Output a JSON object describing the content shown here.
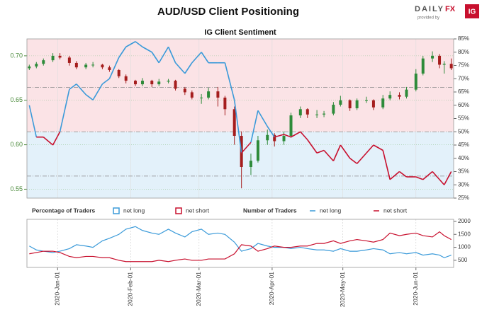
{
  "header": {
    "title": "AUD/USD Client Positioning",
    "logo_daily": "DAILY",
    "logo_fx": "FX",
    "provided_by": "provided by",
    "brand": "IG"
  },
  "chart_data": [
    {
      "type": "candlestick",
      "title": "IG Client Sentiment",
      "x": [
        "2019-12-20",
        "2019-12-23",
        "2019-12-26",
        "2019-12-30",
        "2020-01-02",
        "2020-01-06",
        "2020-01-09",
        "2020-01-13",
        "2020-01-16",
        "2020-01-20",
        "2020-01-23",
        "2020-01-27",
        "2020-01-30",
        "2020-02-03",
        "2020-02-06",
        "2020-02-10",
        "2020-02-13",
        "2020-02-17",
        "2020-02-20",
        "2020-02-24",
        "2020-02-27",
        "2020-03-02",
        "2020-03-05",
        "2020-03-09",
        "2020-03-12",
        "2020-03-16",
        "2020-03-19",
        "2020-03-23",
        "2020-03-26",
        "2020-03-30",
        "2020-04-02",
        "2020-04-06",
        "2020-04-09",
        "2020-04-13",
        "2020-04-16",
        "2020-04-20",
        "2020-04-23",
        "2020-04-27",
        "2020-04-30",
        "2020-05-04",
        "2020-05-07",
        "2020-05-11",
        "2020-05-14",
        "2020-05-18",
        "2020-05-21",
        "2020-05-25",
        "2020-05-28",
        "2020-06-01",
        "2020-06-04",
        "2020-06-08",
        "2020-06-11",
        "2020-06-13",
        "2020-06-16"
      ],
      "open": [
        0.686,
        0.688,
        0.691,
        0.695,
        0.7,
        0.698,
        0.692,
        0.687,
        0.69,
        0.69,
        0.687,
        0.684,
        0.677,
        0.672,
        0.668,
        0.672,
        0.668,
        0.671,
        0.672,
        0.663,
        0.659,
        0.653,
        0.653,
        0.66,
        0.653,
        0.64,
        0.61,
        0.575,
        0.582,
        0.605,
        0.611,
        0.604,
        0.61,
        0.633,
        0.64,
        0.634,
        0.634,
        0.635,
        0.645,
        0.65,
        0.641,
        0.65,
        0.65,
        0.642,
        0.652,
        0.656,
        0.654,
        0.662,
        0.68,
        0.697,
        0.7,
        0.69,
        0.691
      ],
      "high": [
        0.69,
        0.693,
        0.697,
        0.703,
        0.703,
        0.7,
        0.694,
        0.692,
        0.693,
        0.691,
        0.689,
        0.685,
        0.679,
        0.673,
        0.675,
        0.673,
        0.674,
        0.674,
        0.673,
        0.665,
        0.661,
        0.657,
        0.664,
        0.665,
        0.655,
        0.643,
        0.615,
        0.59,
        0.61,
        0.617,
        0.613,
        0.615,
        0.636,
        0.643,
        0.641,
        0.639,
        0.638,
        0.648,
        0.655,
        0.651,
        0.652,
        0.654,
        0.651,
        0.656,
        0.66,
        0.659,
        0.665,
        0.685,
        0.7,
        0.705,
        0.702,
        0.694,
        0.697
      ],
      "low": [
        0.684,
        0.686,
        0.689,
        0.693,
        0.696,
        0.689,
        0.685,
        0.685,
        0.687,
        0.685,
        0.682,
        0.675,
        0.669,
        0.666,
        0.666,
        0.665,
        0.666,
        0.669,
        0.661,
        0.656,
        0.651,
        0.646,
        0.651,
        0.643,
        0.633,
        0.6,
        0.551,
        0.566,
        0.58,
        0.6,
        0.598,
        0.6,
        0.608,
        0.63,
        0.63,
        0.63,
        0.631,
        0.633,
        0.643,
        0.638,
        0.639,
        0.647,
        0.639,
        0.64,
        0.65,
        0.651,
        0.652,
        0.66,
        0.678,
        0.693,
        0.686,
        0.68,
        0.684
      ],
      "close": [
        0.688,
        0.691,
        0.695,
        0.7,
        0.698,
        0.692,
        0.687,
        0.69,
        0.69,
        0.687,
        0.684,
        0.677,
        0.672,
        0.668,
        0.672,
        0.668,
        0.671,
        0.672,
        0.663,
        0.659,
        0.653,
        0.653,
        0.66,
        0.653,
        0.64,
        0.61,
        0.575,
        0.582,
        0.605,
        0.611,
        0.604,
        0.61,
        0.633,
        0.64,
        0.634,
        0.634,
        0.635,
        0.645,
        0.65,
        0.641,
        0.65,
        0.65,
        0.642,
        0.652,
        0.656,
        0.654,
        0.662,
        0.68,
        0.697,
        0.7,
        0.69,
        0.691,
        0.686
      ],
      "up_color": "#2e8b3a",
      "down_color": "#a51d1d",
      "sentiment": {
        "values": [
          60,
          48,
          48,
          45,
          50,
          66,
          68,
          64,
          62,
          68,
          70,
          78,
          82,
          84,
          82,
          80,
          76,
          82,
          76,
          72,
          76,
          80,
          76,
          76,
          76,
          62,
          42,
          46,
          58,
          52,
          48,
          49,
          48,
          50,
          47,
          42,
          43,
          39,
          45,
          40,
          38,
          42,
          45,
          43,
          32,
          35,
          33,
          33,
          32,
          35,
          32,
          30,
          35
        ],
        "threshold": 50
      },
      "legend": [
        {
          "name": "net long",
          "color": "#3a9ad9"
        },
        {
          "name": "net short",
          "color": "#c8102e"
        }
      ],
      "reference_lines": [
        33.3,
        50,
        66.7
      ],
      "xlim": [
        "2019-12-19",
        "2020-06-17"
      ],
      "ylim": [
        0.54,
        0.719
      ],
      "yticks": [
        0.55,
        {
          "value": 0.6,
          "label": "0.60"
        },
        0.65,
        {
          "value": 0.7,
          "label": "0.70"
        }
      ],
      "y2lim": [
        25,
        85
      ],
      "y2ticks": [
        {
          "value": 25,
          "label": "25%"
        },
        {
          "value": 30,
          "label": "30%"
        },
        {
          "value": 35,
          "label": "35%"
        },
        {
          "value": 40,
          "label": "40%"
        },
        {
          "value": 45,
          "label": "45%"
        },
        {
          "value": 50,
          "label": "50%"
        },
        {
          "value": 55,
          "label": "55%"
        },
        {
          "value": 60,
          "label": "60%"
        },
        {
          "value": 65,
          "label": "65%"
        },
        {
          "value": 70,
          "label": "70%"
        },
        {
          "value": 75,
          "label": "75%"
        },
        {
          "value": 80,
          "label": "80%"
        },
        {
          "value": 85,
          "label": "85%"
        }
      ],
      "legend_title": "Percentage of Traders"
    },
    {
      "type": "line",
      "legend_title": "Number of Traders",
      "x": [
        "2019-12-20",
        "2019-12-23",
        "2019-12-26",
        "2019-12-30",
        "2020-01-02",
        "2020-01-06",
        "2020-01-09",
        "2020-01-13",
        "2020-01-16",
        "2020-01-20",
        "2020-01-23",
        "2020-01-27",
        "2020-01-30",
        "2020-02-03",
        "2020-02-06",
        "2020-02-10",
        "2020-02-13",
        "2020-02-17",
        "2020-02-20",
        "2020-02-24",
        "2020-02-27",
        "2020-03-02",
        "2020-03-05",
        "2020-03-09",
        "2020-03-12",
        "2020-03-16",
        "2020-03-19",
        "2020-03-23",
        "2020-03-26",
        "2020-03-30",
        "2020-04-02",
        "2020-04-06",
        "2020-04-09",
        "2020-04-13",
        "2020-04-16",
        "2020-04-20",
        "2020-04-23",
        "2020-04-27",
        "2020-04-30",
        "2020-05-04",
        "2020-05-07",
        "2020-05-11",
        "2020-05-14",
        "2020-05-18",
        "2020-05-21",
        "2020-05-25",
        "2020-05-28",
        "2020-06-01",
        "2020-06-04",
        "2020-06-08",
        "2020-06-11",
        "2020-06-13",
        "2020-06-16"
      ],
      "series": [
        {
          "name": "net long",
          "color": "#3a9ad9",
          "values": [
            1050,
            900,
            850,
            800,
            850,
            950,
            1100,
            1050,
            1000,
            1250,
            1350,
            1500,
            1700,
            1800,
            1650,
            1550,
            1500,
            1700,
            1550,
            1400,
            1600,
            1700,
            1500,
            1550,
            1500,
            1200,
            850,
            950,
            1150,
            1050,
            1000,
            1000,
            950,
            1000,
            950,
            900,
            900,
            850,
            950,
            850,
            850,
            900,
            950,
            900,
            750,
            800,
            750,
            800,
            700,
            750,
            700,
            600,
            700
          ]
        },
        {
          "name": "net short",
          "color": "#c8102e",
          "values": [
            750,
            800,
            850,
            850,
            800,
            650,
            600,
            650,
            650,
            600,
            600,
            500,
            450,
            450,
            450,
            450,
            500,
            450,
            500,
            550,
            500,
            500,
            550,
            550,
            550,
            750,
            1100,
            1050,
            850,
            950,
            1050,
            1000,
            1000,
            1050,
            1050,
            1150,
            1150,
            1250,
            1150,
            1250,
            1300,
            1250,
            1200,
            1300,
            1550,
            1450,
            1500,
            1550,
            1450,
            1400,
            1600,
            1450,
            1300
          ]
        }
      ],
      "xlim": [
        "2019-12-19",
        "2020-06-17"
      ],
      "xticks": [
        {
          "value": "2020-01-01",
          "label": "2020-Jan-01"
        },
        {
          "value": "2020-02-01",
          "label": "2020-Feb-01"
        },
        {
          "value": "2020-03-01",
          "label": "2020-Mar-01"
        },
        {
          "value": "2020-04-01",
          "label": "2020-Apr-01"
        },
        {
          "value": "2020-05-01",
          "label": "2020-May-01"
        },
        {
          "value": "2020-06-01",
          "label": "2020-Jun-01"
        }
      ],
      "ylim": [
        225,
        2080
      ],
      "yticks": [
        500,
        1000,
        1500,
        2000
      ]
    }
  ]
}
